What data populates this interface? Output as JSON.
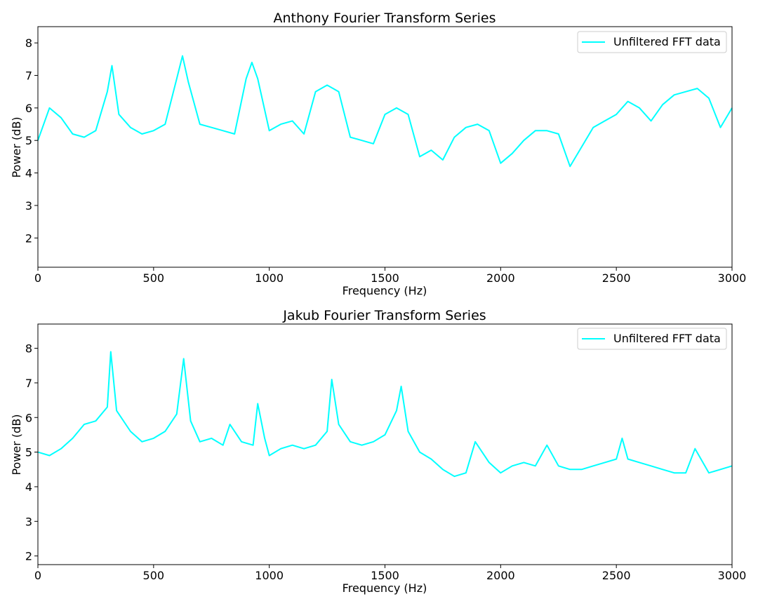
{
  "chart_data": [
    {
      "type": "line",
      "title": "Anthony Fourier Transform Series",
      "xlabel": "Frequency (Hz)",
      "ylabel": "Power (dB)",
      "xlim": [
        0,
        3000
      ],
      "ylim": [
        1.1,
        8.5
      ],
      "xticks": [
        0,
        500,
        1000,
        1500,
        2000,
        2500,
        3000
      ],
      "yticks": [
        2,
        3,
        4,
        5,
        6,
        7,
        8
      ],
      "grid": false,
      "legend": {
        "placement": "top-right",
        "entries": [
          "Unfiltered FFT data"
        ]
      },
      "series": [
        {
          "name": "Unfiltered FFT data",
          "color": "#00ffff",
          "x": [
            0,
            50,
            100,
            150,
            200,
            250,
            300,
            320,
            350,
            400,
            450,
            500,
            550,
            600,
            625,
            650,
            700,
            750,
            800,
            850,
            900,
            925,
            950,
            1000,
            1050,
            1100,
            1150,
            1200,
            1250,
            1300,
            1350,
            1400,
            1450,
            1500,
            1550,
            1600,
            1650,
            1700,
            1750,
            1800,
            1850,
            1900,
            1950,
            2000,
            2050,
            2100,
            2150,
            2200,
            2250,
            2300,
            2350,
            2400,
            2450,
            2500,
            2550,
            2600,
            2650,
            2700,
            2750,
            2800,
            2850,
            2900,
            2950,
            3000
          ],
          "values": [
            5.0,
            6.0,
            5.7,
            5.2,
            5.1,
            5.3,
            6.5,
            7.3,
            5.8,
            5.4,
            5.2,
            5.3,
            5.5,
            6.9,
            7.6,
            6.8,
            5.5,
            5.4,
            5.3,
            5.2,
            6.9,
            7.4,
            6.9,
            5.3,
            5.5,
            5.6,
            5.2,
            6.5,
            6.7,
            6.5,
            5.1,
            5.0,
            4.9,
            5.8,
            6.0,
            5.8,
            4.5,
            4.7,
            4.4,
            5.1,
            5.4,
            5.5,
            5.3,
            4.3,
            4.6,
            5.0,
            5.3,
            5.3,
            5.2,
            4.2,
            4.8,
            5.4,
            5.6,
            5.8,
            6.2,
            6.0,
            5.6,
            6.1,
            6.4,
            6.5,
            6.6,
            6.3,
            5.4,
            6.0
          ]
        }
      ]
    },
    {
      "type": "line",
      "title": "Jakub Fourier Transform Series",
      "xlabel": "Frequency (Hz)",
      "ylabel": "Power (dB)",
      "xlim": [
        0,
        3000
      ],
      "ylim": [
        1.75,
        8.7
      ],
      "xticks": [
        0,
        500,
        1000,
        1500,
        2000,
        2500,
        3000
      ],
      "yticks": [
        2,
        3,
        4,
        5,
        6,
        7,
        8
      ],
      "grid": false,
      "legend": {
        "placement": "top-right",
        "entries": [
          "Unfiltered FFT data"
        ]
      },
      "series": [
        {
          "name": "Unfiltered FFT data",
          "color": "#00ffff",
          "x": [
            0,
            50,
            100,
            150,
            200,
            250,
            300,
            315,
            340,
            400,
            450,
            500,
            550,
            600,
            630,
            660,
            700,
            750,
            800,
            830,
            880,
            930,
            950,
            980,
            1000,
            1050,
            1100,
            1150,
            1200,
            1250,
            1270,
            1300,
            1350,
            1400,
            1450,
            1500,
            1550,
            1570,
            1600,
            1650,
            1700,
            1750,
            1800,
            1850,
            1890,
            1950,
            2000,
            2050,
            2100,
            2150,
            2200,
            2250,
            2300,
            2350,
            2400,
            2450,
            2500,
            2525,
            2550,
            2600,
            2650,
            2700,
            2750,
            2800,
            2840,
            2900,
            2950,
            3000
          ],
          "values": [
            5.0,
            4.9,
            5.1,
            5.4,
            5.8,
            5.9,
            6.3,
            7.9,
            6.2,
            5.6,
            5.3,
            5.4,
            5.6,
            6.1,
            7.7,
            5.9,
            5.3,
            5.4,
            5.2,
            5.8,
            5.3,
            5.2,
            6.4,
            5.4,
            4.9,
            5.1,
            5.2,
            5.1,
            5.2,
            5.6,
            7.1,
            5.8,
            5.3,
            5.2,
            5.3,
            5.5,
            6.2,
            6.9,
            5.6,
            5.0,
            4.8,
            4.5,
            4.3,
            4.4,
            5.3,
            4.7,
            4.4,
            4.6,
            4.7,
            4.6,
            5.2,
            4.6,
            4.5,
            4.5,
            4.6,
            4.7,
            4.8,
            5.4,
            4.8,
            4.7,
            4.6,
            4.5,
            4.4,
            4.4,
            5.1,
            4.4,
            4.5,
            4.6
          ]
        }
      ]
    }
  ]
}
